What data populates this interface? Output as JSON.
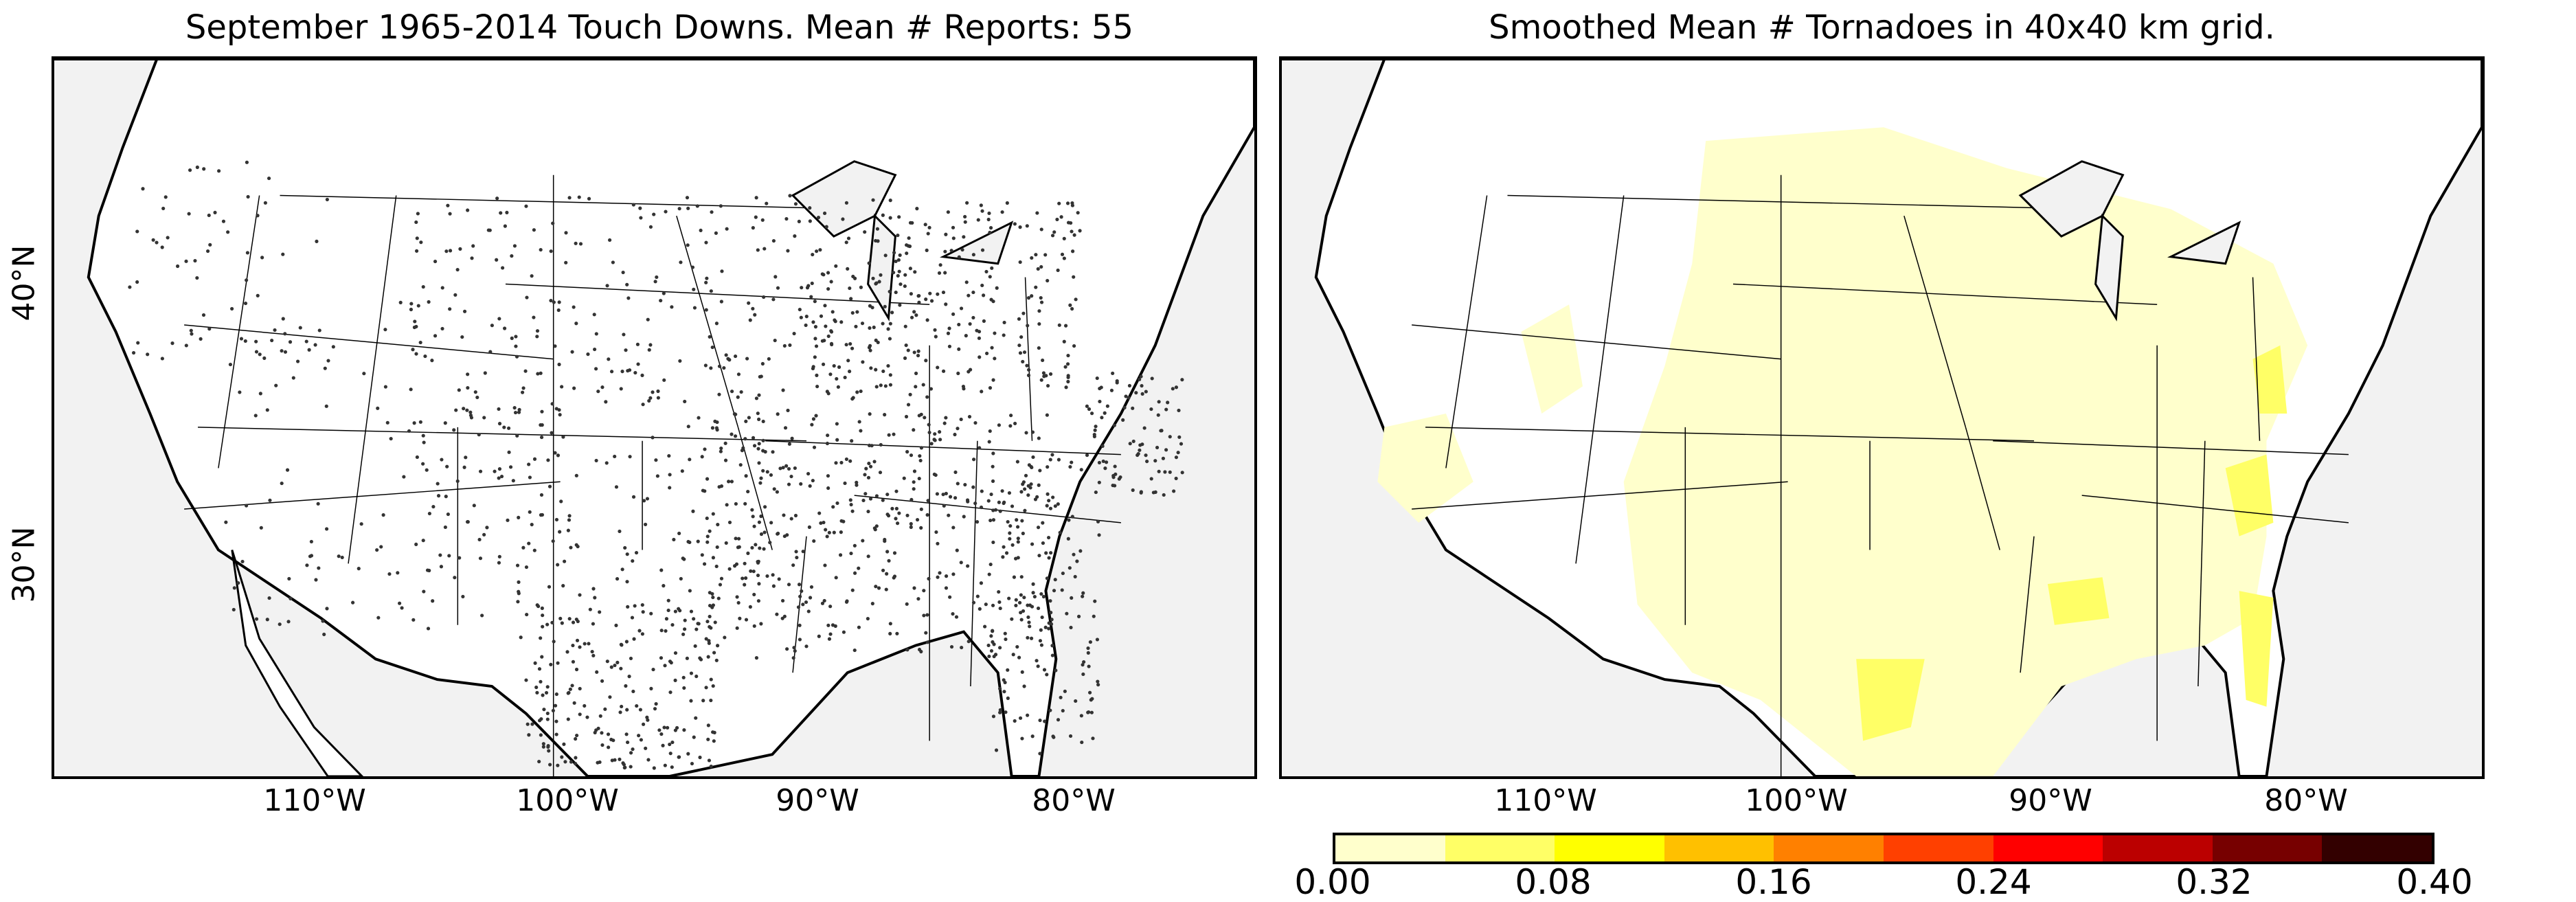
{
  "panels": [
    {
      "title": "September 1965-2014 Touch Downs. Mean # Reports: 55",
      "lat_labels": [
        "40°N",
        "30°N"
      ],
      "lon_labels": [
        "110°W",
        "100°W",
        "90°W",
        "80°W"
      ]
    },
    {
      "title": "Smoothed Mean # Tornadoes in 40x40 km grid.",
      "lon_labels": [
        "110°W",
        "100°W",
        "90°W",
        "80°W"
      ]
    }
  ],
  "colorbar": {
    "ticks": [
      "0.00",
      "0.08",
      "0.16",
      "0.24",
      "0.32",
      "0.40"
    ],
    "colors": [
      "#ffffcc",
      "#ffff66",
      "#ffff00",
      "#ffc000",
      "#ff8000",
      "#ff4000",
      "#ff0000",
      "#bb0000",
      "#770000",
      "#330000"
    ]
  },
  "colors": {
    "ocean": "#f2f2f2",
    "land": "#ffffff",
    "report_dot": "#333333"
  }
}
